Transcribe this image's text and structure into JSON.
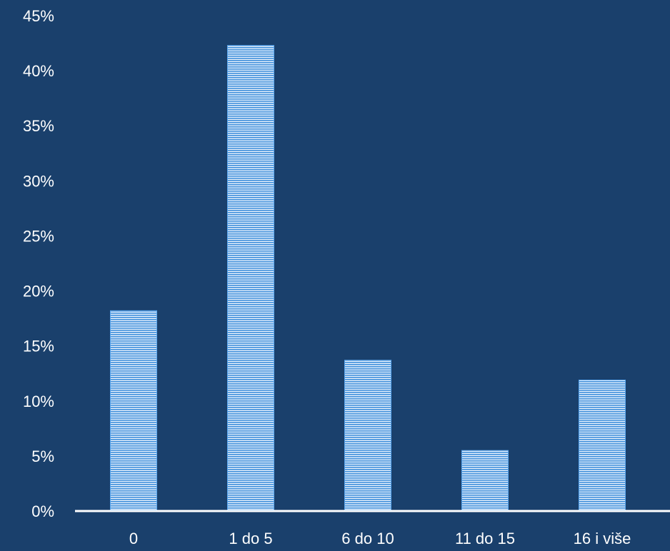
{
  "chart_data": {
    "type": "bar",
    "title": "",
    "xlabel": "",
    "ylabel": "",
    "categories": [
      "0",
      "1 do 5",
      "6 do 10",
      "11 do 15",
      "16 i više"
    ],
    "values": [
      18.2,
      42.3,
      13.7,
      5.5,
      11.9
    ],
    "ylim": [
      0,
      45
    ],
    "yticks": [
      0,
      5,
      10,
      15,
      20,
      25,
      30,
      35,
      40,
      45
    ],
    "ytick_labels": [
      "0%",
      "5%",
      "10%",
      "15%",
      "20%",
      "25%",
      "30%",
      "35%",
      "40%",
      "45%"
    ],
    "grid": false,
    "legend": "none",
    "colors": {
      "background": "#1a406c",
      "bar_fill": "#e8f1fc",
      "bar_stripe": "#3f8fdb",
      "bar_edge": "#5aa7ef",
      "axis": "#ffffff",
      "text": "#ffffff"
    },
    "bar_pattern": "horizontal-stripes"
  }
}
